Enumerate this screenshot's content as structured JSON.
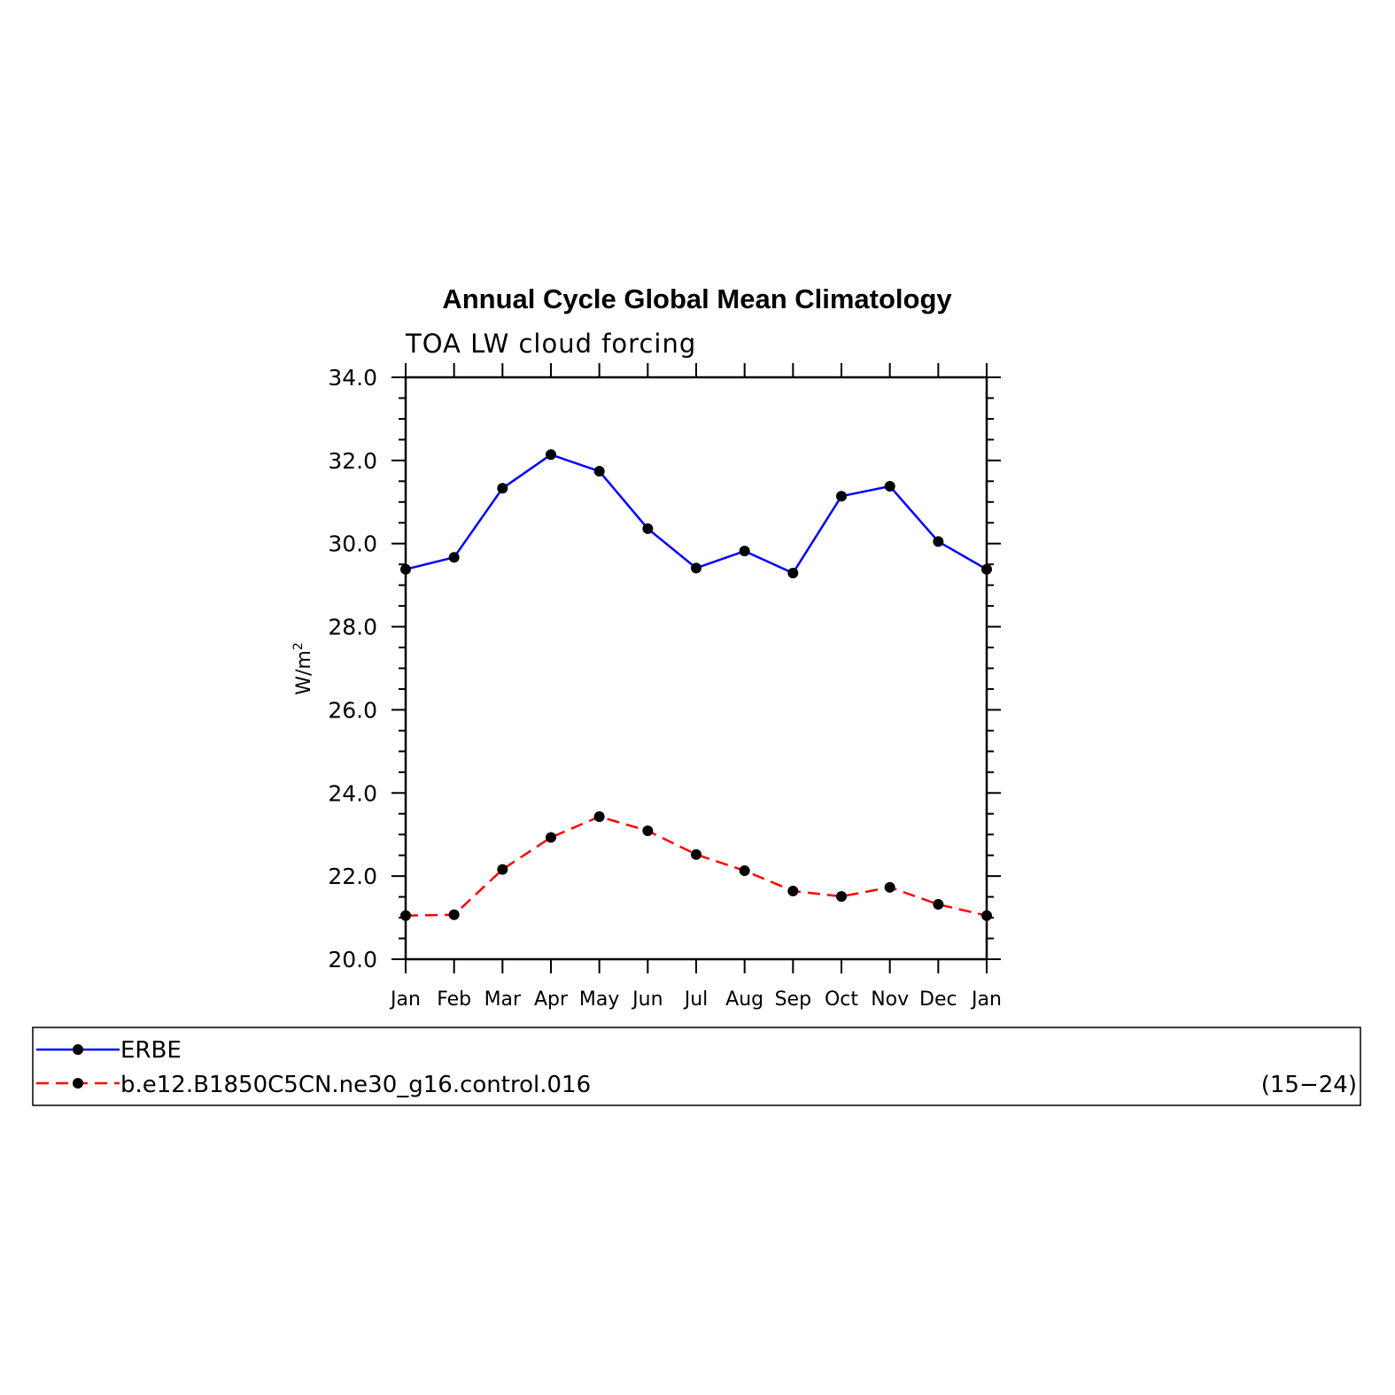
{
  "chart_data": {
    "type": "line",
    "title": "Annual Cycle Global Mean Climatology",
    "subtitle": "TOA LW cloud forcing",
    "ylabel_main": "W/m",
    "ylabel_sup": "2",
    "categories": [
      "Jan",
      "Feb",
      "Mar",
      "Apr",
      "May",
      "Jun",
      "Jul",
      "Aug",
      "Sep",
      "Oct",
      "Nov",
      "Dec",
      "Jan"
    ],
    "ylim": [
      20.0,
      34.0
    ],
    "yticks": [
      "20.0",
      "22.0",
      "24.0",
      "26.0",
      "28.0",
      "30.0",
      "32.0",
      "34.0"
    ],
    "grid": false,
    "legend_position": "bottom",
    "series": [
      {
        "name": "ERBE",
        "color": "#0000ff",
        "dash": "solid",
        "values": [
          29.38,
          29.67,
          31.33,
          32.14,
          31.74,
          30.36,
          29.41,
          29.82,
          29.29,
          31.14,
          31.38,
          30.05,
          29.38
        ]
      },
      {
        "name": "b.e12.B1850C5CN.ne30_g16.control.016",
        "color": "#ff0000",
        "dash": "dashed",
        "values": [
          21.05,
          21.07,
          22.16,
          22.93,
          23.43,
          23.09,
          22.52,
          22.13,
          21.64,
          21.51,
          21.73,
          21.32,
          21.05
        ]
      }
    ]
  },
  "legend": {
    "years_label": "(15−24)"
  }
}
